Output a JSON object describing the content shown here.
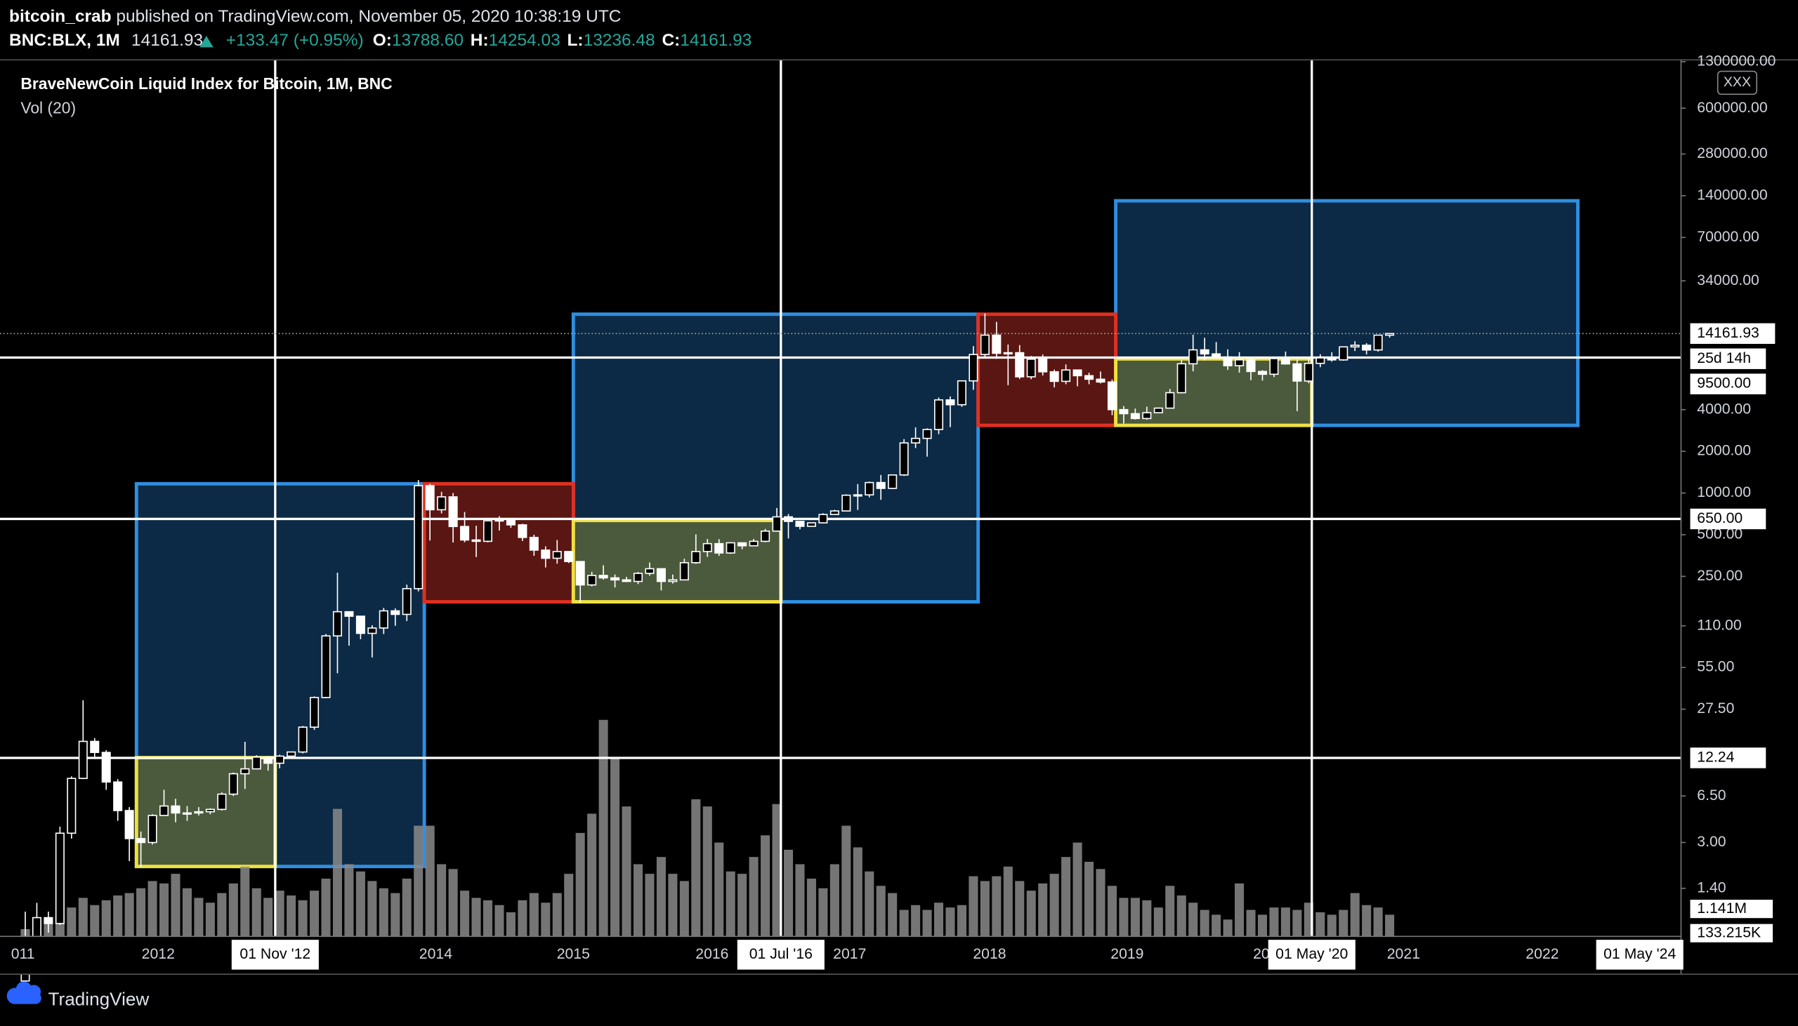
{
  "header": {
    "author": "bitcoin_crab",
    "published": "published on TradingView.com, November 05, 2020 10:38:19 UTC",
    "symbol": "BNC:BLX, 1M",
    "last": "14161.93",
    "change": "+133.47 (+0.95%)",
    "ohlc": [
      {
        "label": "O:",
        "value": "13788.60"
      },
      {
        "label": "H:",
        "value": "14254.03"
      },
      {
        "label": "L:",
        "value": "13236.48"
      },
      {
        "label": "C:",
        "value": "14161.93"
      }
    ],
    "button": "XXX"
  },
  "chart_data": {
    "type": "candlestick",
    "title": "BraveNewCoin Liquid Index for Bitcoin, 1M, BNC",
    "subtitle": "Vol (20)",
    "log_scale": true,
    "grid": false,
    "up_color": "#000000",
    "down_color": "#ffffff",
    "wick_color": "#ffffff",
    "volume_color": "#8a8a8a",
    "open": [
      0.3,
      0.52,
      0.86,
      0.78,
      3.5,
      8.7,
      16.1,
      13.4,
      8.2,
      5.1,
      3.2,
      3.0,
      4.7,
      5.5,
      4.9,
      4.9,
      5.0,
      5.2,
      6.7,
      9.4,
      10.2,
      12.4,
      11.2,
      12.6,
      13.5,
      20.4,
      33.4,
      93,
      139,
      129,
      97,
      106,
      141,
      133,
      204,
      1130,
      757,
      938,
      573,
      458,
      448,
      630,
      640,
      589,
      478,
      387,
      338,
      378,
      320,
      217,
      254,
      244,
      236,
      230,
      263,
      284,
      230,
      236,
      314,
      378,
      431,
      369,
      437,
      416,
      448,
      531,
      673,
      624,
      575,
      609,
      700,
      742,
      964,
      970,
      1190,
      1080,
      1350,
      2300,
      2480,
      2875,
      4700,
      4340,
      6450,
      10000,
      13800,
      10200,
      10300,
      6900,
      9250,
      7500,
      6400,
      7730,
      7030,
      6630,
      6330,
      4000,
      3740,
      3450,
      3800,
      4100,
      5300,
      8570,
      10800,
      10100,
      9600,
      8300,
      9150,
      7540,
      7200,
      9350,
      8550,
      6430,
      8630,
      9450,
      9140,
      11350,
      11660,
      10780,
      13788.6
    ],
    "high": [
      0.95,
      1.1,
      0.95,
      3.9,
      9.0,
      31.9,
      17,
      13.9,
      8.6,
      5.4,
      3.6,
      4.8,
      7.2,
      6.2,
      5.5,
      5.4,
      5.3,
      6.9,
      9.6,
      16,
      12.8,
      12.6,
      12.9,
      13.6,
      20.8,
      34,
      96,
      266,
      140,
      129,
      111,
      148,
      147,
      218,
      1242,
      1165,
      1020,
      1000,
      730,
      580,
      635,
      680,
      660,
      600,
      500,
      412,
      458,
      380,
      320,
      270,
      301,
      258,
      248,
      269,
      315,
      285,
      258,
      335,
      503,
      465,
      464,
      440,
      439,
      466,
      551,
      780,
      705,
      626,
      613,
      714,
      756,
      979,
      1160,
      1210,
      1350,
      1360,
      2450,
      2980,
      2930,
      4890,
      4980,
      6470,
      11500,
      19800,
      17200,
      11800,
      11700,
      9750,
      10000,
      7780,
      8480,
      7760,
      7390,
      7540,
      6600,
      4240,
      4070,
      4200,
      4150,
      5640,
      9070,
      13900,
      13200,
      12300,
      10900,
      10400,
      9500,
      7700,
      9570,
      10500,
      9190,
      9470,
      10040,
      10390,
      11440,
      12470,
      12070,
      13860,
      14254.03
    ],
    "low": [
      0.3,
      0.52,
      0.67,
      0.76,
      3.2,
      8.6,
      12,
      7.2,
      4.3,
      2.2,
      2.0,
      2.9,
      4.7,
      4.2,
      4.3,
      4.7,
      4.8,
      5.1,
      6.5,
      7.3,
      10.1,
      9.9,
      10.3,
      12.4,
      13.2,
      19.5,
      33,
      50,
      79,
      88,
      65,
      96,
      110,
      119,
      195,
      454,
      713,
      439,
      441,
      345,
      440,
      536,
      561,
      450,
      352,
      290,
      309,
      312,
      162,
      212,
      237,
      208,
      228,
      220,
      253,
      198,
      222,
      235,
      308,
      346,
      352,
      364,
      393,
      412,
      441,
      526,
      470,
      547,
      575,
      605,
      698,
      737,
      754,
      931,
      893,
      1070,
      1330,
      2110,
      1830,
      2660,
      2990,
      4190,
      5560,
      9630,
      9300,
      6000,
      6650,
      6630,
      7050,
      5790,
      6100,
      5900,
      6100,
      6180,
      3650,
      3180,
      3390,
      3380,
      3780,
      4090,
      5230,
      7560,
      9050,
      9350,
      7750,
      7400,
      6520,
      6480,
      6870,
      8450,
      3900,
      6200,
      8100,
      8880,
      9020,
      10600,
      10000,
      10500,
      13236.48
    ],
    "close": [
      0.52,
      0.86,
      0.78,
      3.5,
      8.7,
      16.1,
      13.4,
      8.2,
      5.1,
      3.2,
      3.0,
      4.7,
      5.5,
      4.9,
      4.9,
      5.0,
      5.2,
      6.7,
      9.4,
      10.2,
      12.4,
      11.2,
      12.6,
      13.5,
      20.4,
      33.4,
      93,
      139,
      129,
      97,
      106,
      141,
      133,
      204,
      1130,
      757,
      938,
      573,
      458,
      448,
      630,
      640,
      589,
      478,
      387,
      338,
      378,
      320,
      217,
      254,
      244,
      236,
      230,
      263,
      284,
      230,
      236,
      314,
      378,
      431,
      369,
      437,
      416,
      448,
      531,
      673,
      624,
      575,
      609,
      700,
      742,
      964,
      970,
      1190,
      1080,
      1350,
      2300,
      2480,
      2875,
      4700,
      4340,
      6450,
      10000,
      13800,
      10200,
      10300,
      6900,
      9250,
      7500,
      6400,
      7730,
      7030,
      6630,
      6330,
      4000,
      3740,
      3450,
      3800,
      4100,
      5300,
      8570,
      10800,
      10100,
      9600,
      8300,
      9150,
      7540,
      7200,
      9350,
      8550,
      6430,
      8630,
      9450,
      9140,
      11350,
      11660,
      10780,
      13788.6,
      14161.93
    ],
    "volume": [
      300000.0,
      500000.0,
      600000.0,
      900000.0,
      1200000.0,
      1600000.0,
      1300000.0,
      1500000.0,
      1700000.0,
      1800000.0,
      2000000.0,
      2300000.0,
      2200000.0,
      2600000.0,
      2000000.0,
      1600000.0,
      1400000.0,
      1800000.0,
      2200000.0,
      2900000.0,
      2000000.0,
      1600000.0,
      1900000.0,
      1700000.0,
      1500000.0,
      1900000.0,
      2400000.0,
      5300000.0,
      3000000.0,
      2700000.0,
      2300000.0,
      2000000.0,
      1800000.0,
      2400000.0,
      4600000.0,
      4600000.0,
      3000000.0,
      2800000.0,
      1900000.0,
      1600000.0,
      1500000.0,
      1300000.0,
      1000000.0,
      1500000.0,
      1800000.0,
      1400000.0,
      1800000.0,
      2600000.0,
      4300000.0,
      5100000.0,
      9000000.0,
      7400000.0,
      5400000.0,
      3000000.0,
      2600000.0,
      3300000.0,
      2600000.0,
      2300000.0,
      5700000.0,
      5400000.0,
      3900000.0,
      2700000.0,
      2600000.0,
      3300000.0,
      4200000.0,
      5500000.0,
      3600000.0,
      3000000.0,
      2400000.0,
      2000000.0,
      3000000.0,
      4600000.0,
      3700000.0,
      2700000.0,
      2100000.0,
      1800000.0,
      1100000.0,
      1300000.0,
      1100000.0,
      1400000.0,
      1200000.0,
      1300000.0,
      2500000.0,
      2300000.0,
      2500000.0,
      2900000.0,
      2300000.0,
      1900000.0,
      2200000.0,
      2600000.0,
      3300000.0,
      3900000.0,
      3100000.0,
      2800000.0,
      2100000.0,
      1600000.0,
      1600000.0,
      1500000.0,
      1200000.0,
      2100000.0,
      1700000.0,
      1400000.0,
      1100000.0,
      900000.0,
      700000.0,
      2200000.0,
      1100000.0,
      900000.0,
      1200000.0,
      1200000.0,
      1100000.0,
      1400000.0,
      1000000.0,
      900000.0,
      1100000.0,
      1800000.0,
      1300000.0,
      1200000.0,
      900000.0
    ],
    "ylim": [
      0.63,
      1340000
    ],
    "yticks": [
      {
        "value": 1300000,
        "label": "1300000.00"
      },
      {
        "value": 600000,
        "label": "600000.00"
      },
      {
        "value": 280000,
        "label": "280000.00"
      },
      {
        "value": 140000,
        "label": "140000.00"
      },
      {
        "value": 70000,
        "label": "70000.00"
      },
      {
        "value": 34000,
        "label": "34000.00"
      },
      {
        "value": 4000,
        "label": "4000.00"
      },
      {
        "value": 2000,
        "label": "2000.00"
      },
      {
        "value": 1000,
        "label": "1000.00"
      },
      {
        "value": 500,
        "label": "500.00"
      },
      {
        "value": 250,
        "label": "250.00"
      },
      {
        "value": 110,
        "label": "110.00"
      },
      {
        "value": 55,
        "label": "55.00"
      },
      {
        "value": 27.5,
        "label": "27.50"
      },
      {
        "value": 6.5,
        "label": "6.50"
      },
      {
        "value": 3,
        "label": "3.00"
      },
      {
        "value": 1.4,
        "label": "1.40"
      }
    ],
    "volume_lim": [
      0,
      9050000
    ],
    "volume_ticks": [
      {
        "value": 1141000,
        "label": "1.141M"
      },
      {
        "value": 133215,
        "label": "133.215K"
      }
    ],
    "hlines": [
      {
        "value": 12.24,
        "label": "12.24"
      },
      {
        "value": 650,
        "label": "650.00"
      },
      {
        "value": 9500,
        "label": "9500.00"
      }
    ],
    "last_price": {
      "value": 14161.93,
      "label": "14161.93"
    },
    "countdown": "25d 14h",
    "x_labels": [
      "011",
      "2012",
      "2014",
      "2015",
      "2016",
      "2017",
      "2018",
      "2019",
      "20",
      "2021",
      "2022"
    ],
    "vline_labels": [
      "01 Nov '12",
      "01 Jul '16",
      "01 May '20",
      "01 May '24"
    ]
  },
  "footer": {
    "brand": "TradingView"
  }
}
